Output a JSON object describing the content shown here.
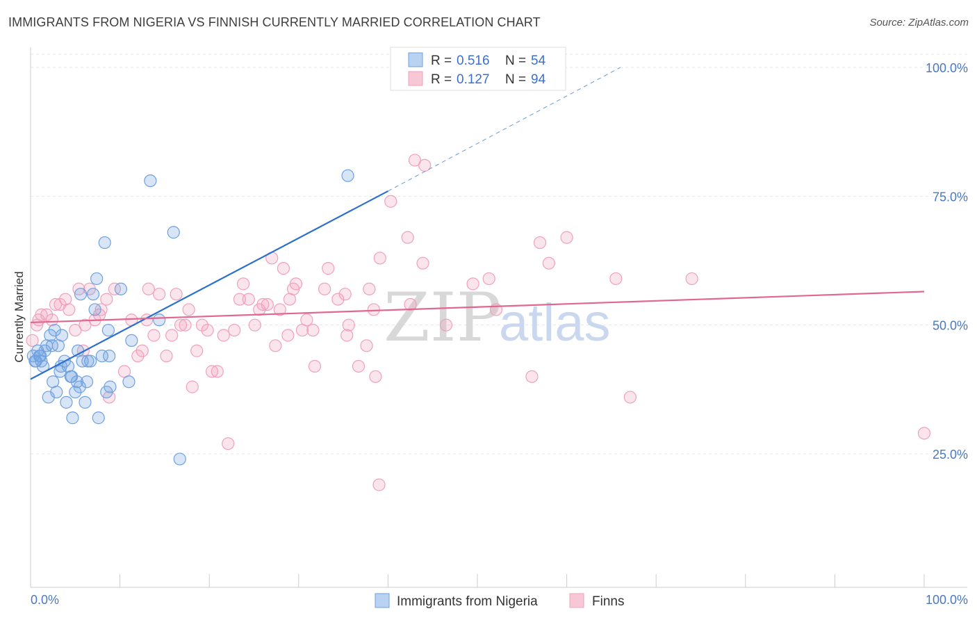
{
  "header": {
    "title": "IMMIGRANTS FROM NIGERIA VS FINNISH CURRENTLY MARRIED CORRELATION CHART",
    "source": "Source: ZipAtlas.com"
  },
  "watermark": {
    "zip": "ZIP",
    "atlas": "atlas"
  },
  "colors": {
    "blue": "#6fa0e0",
    "blue_line": "#2b6fcf",
    "pink": "#f0a0bb",
    "pink_line": "#e0678f"
  },
  "chart_data": {
    "type": "scatter",
    "title": "IMMIGRANTS FROM NIGERIA VS FINNISH CURRENTLY MARRIED CORRELATION CHART",
    "xlabel": "",
    "ylabel": "Currently Married",
    "xlim": [
      0,
      100
    ],
    "ylim": [
      0,
      105
    ],
    "x_tick_labels": [
      "0.0%",
      "100.0%"
    ],
    "y_ticks": [
      25,
      50,
      75,
      100
    ],
    "y_tick_labels": [
      "25.0%",
      "50.0%",
      "75.0%",
      "100.0%"
    ],
    "grid": true,
    "legend_stats": [
      {
        "r_label": "R = ",
        "r_value": "0.516",
        "n_label": "N = ",
        "n_value": "54"
      },
      {
        "r_label": "R = ",
        "r_value": "0.127",
        "n_label": "N = ",
        "n_value": "94"
      }
    ],
    "series": [
      {
        "name": "Immigrants from Nigeria",
        "color": "#6fa0e0",
        "trend": {
          "x0": 0,
          "y0": 39.5,
          "x1": 40,
          "y1": 76,
          "dash_to_x": 66,
          "dash_to_y": 100
        },
        "points": [
          [
            0.3,
            44
          ],
          [
            0.5,
            43
          ],
          [
            0.8,
            45
          ],
          [
            1.0,
            44
          ],
          [
            1.2,
            43
          ],
          [
            1.4,
            42
          ],
          [
            1.6,
            45
          ],
          [
            1.8,
            46
          ],
          [
            2.0,
            36
          ],
          [
            2.2,
            48
          ],
          [
            2.5,
            39
          ],
          [
            2.7,
            49
          ],
          [
            2.9,
            37
          ],
          [
            3.1,
            46
          ],
          [
            3.3,
            41
          ],
          [
            3.5,
            48
          ],
          [
            3.8,
            43
          ],
          [
            4.0,
            35
          ],
          [
            4.2,
            42
          ],
          [
            4.5,
            40
          ],
          [
            4.7,
            32
          ],
          [
            5.0,
            37
          ],
          [
            5.2,
            39
          ],
          [
            5.3,
            45
          ],
          [
            5.5,
            38
          ],
          [
            5.6,
            56
          ],
          [
            5.8,
            43
          ],
          [
            6.1,
            35
          ],
          [
            6.3,
            39
          ],
          [
            6.7,
            43
          ],
          [
            7.0,
            56
          ],
          [
            7.2,
            53
          ],
          [
            7.4,
            59
          ],
          [
            7.6,
            32
          ],
          [
            8.0,
            44
          ],
          [
            8.3,
            66
          ],
          [
            8.5,
            37
          ],
          [
            8.7,
            49
          ],
          [
            8.9,
            38
          ],
          [
            10.1,
            57
          ],
          [
            11.0,
            39
          ],
          [
            11.3,
            47
          ],
          [
            13.4,
            78
          ],
          [
            14.4,
            51
          ],
          [
            16.0,
            68
          ],
          [
            16.7,
            24
          ],
          [
            35.5,
            79
          ],
          [
            1.1,
            44
          ],
          [
            2.4,
            46
          ],
          [
            3.4,
            42
          ],
          [
            4.6,
            40
          ],
          [
            6.4,
            43
          ],
          [
            8.8,
            44
          ],
          [
            0.6,
            43
          ]
        ]
      },
      {
        "name": "Finns",
        "color": "#f0a0bb",
        "trend": {
          "x0": 0,
          "y0": 50.5,
          "x1": 100,
          "y1": 56.5
        },
        "points": [
          [
            0.2,
            47
          ],
          [
            0.7,
            50
          ],
          [
            1.2,
            52
          ],
          [
            1.8,
            52
          ],
          [
            2.4,
            51
          ],
          [
            3.3,
            54
          ],
          [
            3.9,
            55
          ],
          [
            4.3,
            53
          ],
          [
            5.0,
            49
          ],
          [
            5.4,
            57
          ],
          [
            5.9,
            45
          ],
          [
            6.6,
            57
          ],
          [
            7.2,
            51
          ],
          [
            7.7,
            52
          ],
          [
            7.9,
            53
          ],
          [
            8.5,
            55
          ],
          [
            8.8,
            36
          ],
          [
            9.4,
            57
          ],
          [
            10.5,
            41
          ],
          [
            11.3,
            51
          ],
          [
            12.0,
            44
          ],
          [
            13.0,
            51
          ],
          [
            13.2,
            57
          ],
          [
            13.8,
            48
          ],
          [
            14.4,
            56
          ],
          [
            15.2,
            44
          ],
          [
            15.8,
            48
          ],
          [
            16.3,
            56
          ],
          [
            16.8,
            50
          ],
          [
            17.3,
            50
          ],
          [
            17.7,
            53
          ],
          [
            18.1,
            38
          ],
          [
            18.6,
            45
          ],
          [
            19.2,
            50
          ],
          [
            19.8,
            49
          ],
          [
            20.3,
            41
          ],
          [
            20.9,
            41
          ],
          [
            21.6,
            48
          ],
          [
            22.1,
            27
          ],
          [
            22.8,
            49
          ],
          [
            23.4,
            55
          ],
          [
            23.8,
            58
          ],
          [
            24.4,
            55
          ],
          [
            25.1,
            50
          ],
          [
            25.6,
            53
          ],
          [
            26.0,
            54
          ],
          [
            26.5,
            54
          ],
          [
            27.0,
            63
          ],
          [
            27.4,
            46
          ],
          [
            27.9,
            53
          ],
          [
            28.3,
            61
          ],
          [
            28.8,
            48
          ],
          [
            29.4,
            57
          ],
          [
            29.7,
            58
          ],
          [
            30.4,
            49
          ],
          [
            30.9,
            51
          ],
          [
            31.6,
            49
          ],
          [
            31.8,
            42
          ],
          [
            32.9,
            57
          ],
          [
            33.3,
            61
          ],
          [
            34.4,
            55
          ],
          [
            35.2,
            56
          ],
          [
            35.4,
            48
          ],
          [
            35.6,
            50
          ],
          [
            36.7,
            42
          ],
          [
            37.6,
            46
          ],
          [
            37.9,
            57
          ],
          [
            38.4,
            53
          ],
          [
            38.6,
            40
          ],
          [
            39.1,
            63
          ],
          [
            40.3,
            74
          ],
          [
            42.2,
            67
          ],
          [
            42.5,
            54
          ],
          [
            43.0,
            82
          ],
          [
            44.1,
            81
          ],
          [
            43.9,
            62
          ],
          [
            49.5,
            58
          ],
          [
            51.3,
            59
          ],
          [
            52.1,
            53
          ],
          [
            56.1,
            40
          ],
          [
            57.0,
            66
          ],
          [
            58.0,
            62
          ],
          [
            60.0,
            67
          ],
          [
            65.5,
            59
          ],
          [
            67.1,
            36
          ],
          [
            74.0,
            59
          ],
          [
            100.0,
            29
          ],
          [
            39.0,
            19
          ],
          [
            0.9,
            51
          ],
          [
            2.8,
            54
          ],
          [
            6.1,
            50
          ],
          [
            12.5,
            45
          ],
          [
            29.0,
            55
          ],
          [
            46.5,
            50
          ]
        ]
      }
    ]
  }
}
